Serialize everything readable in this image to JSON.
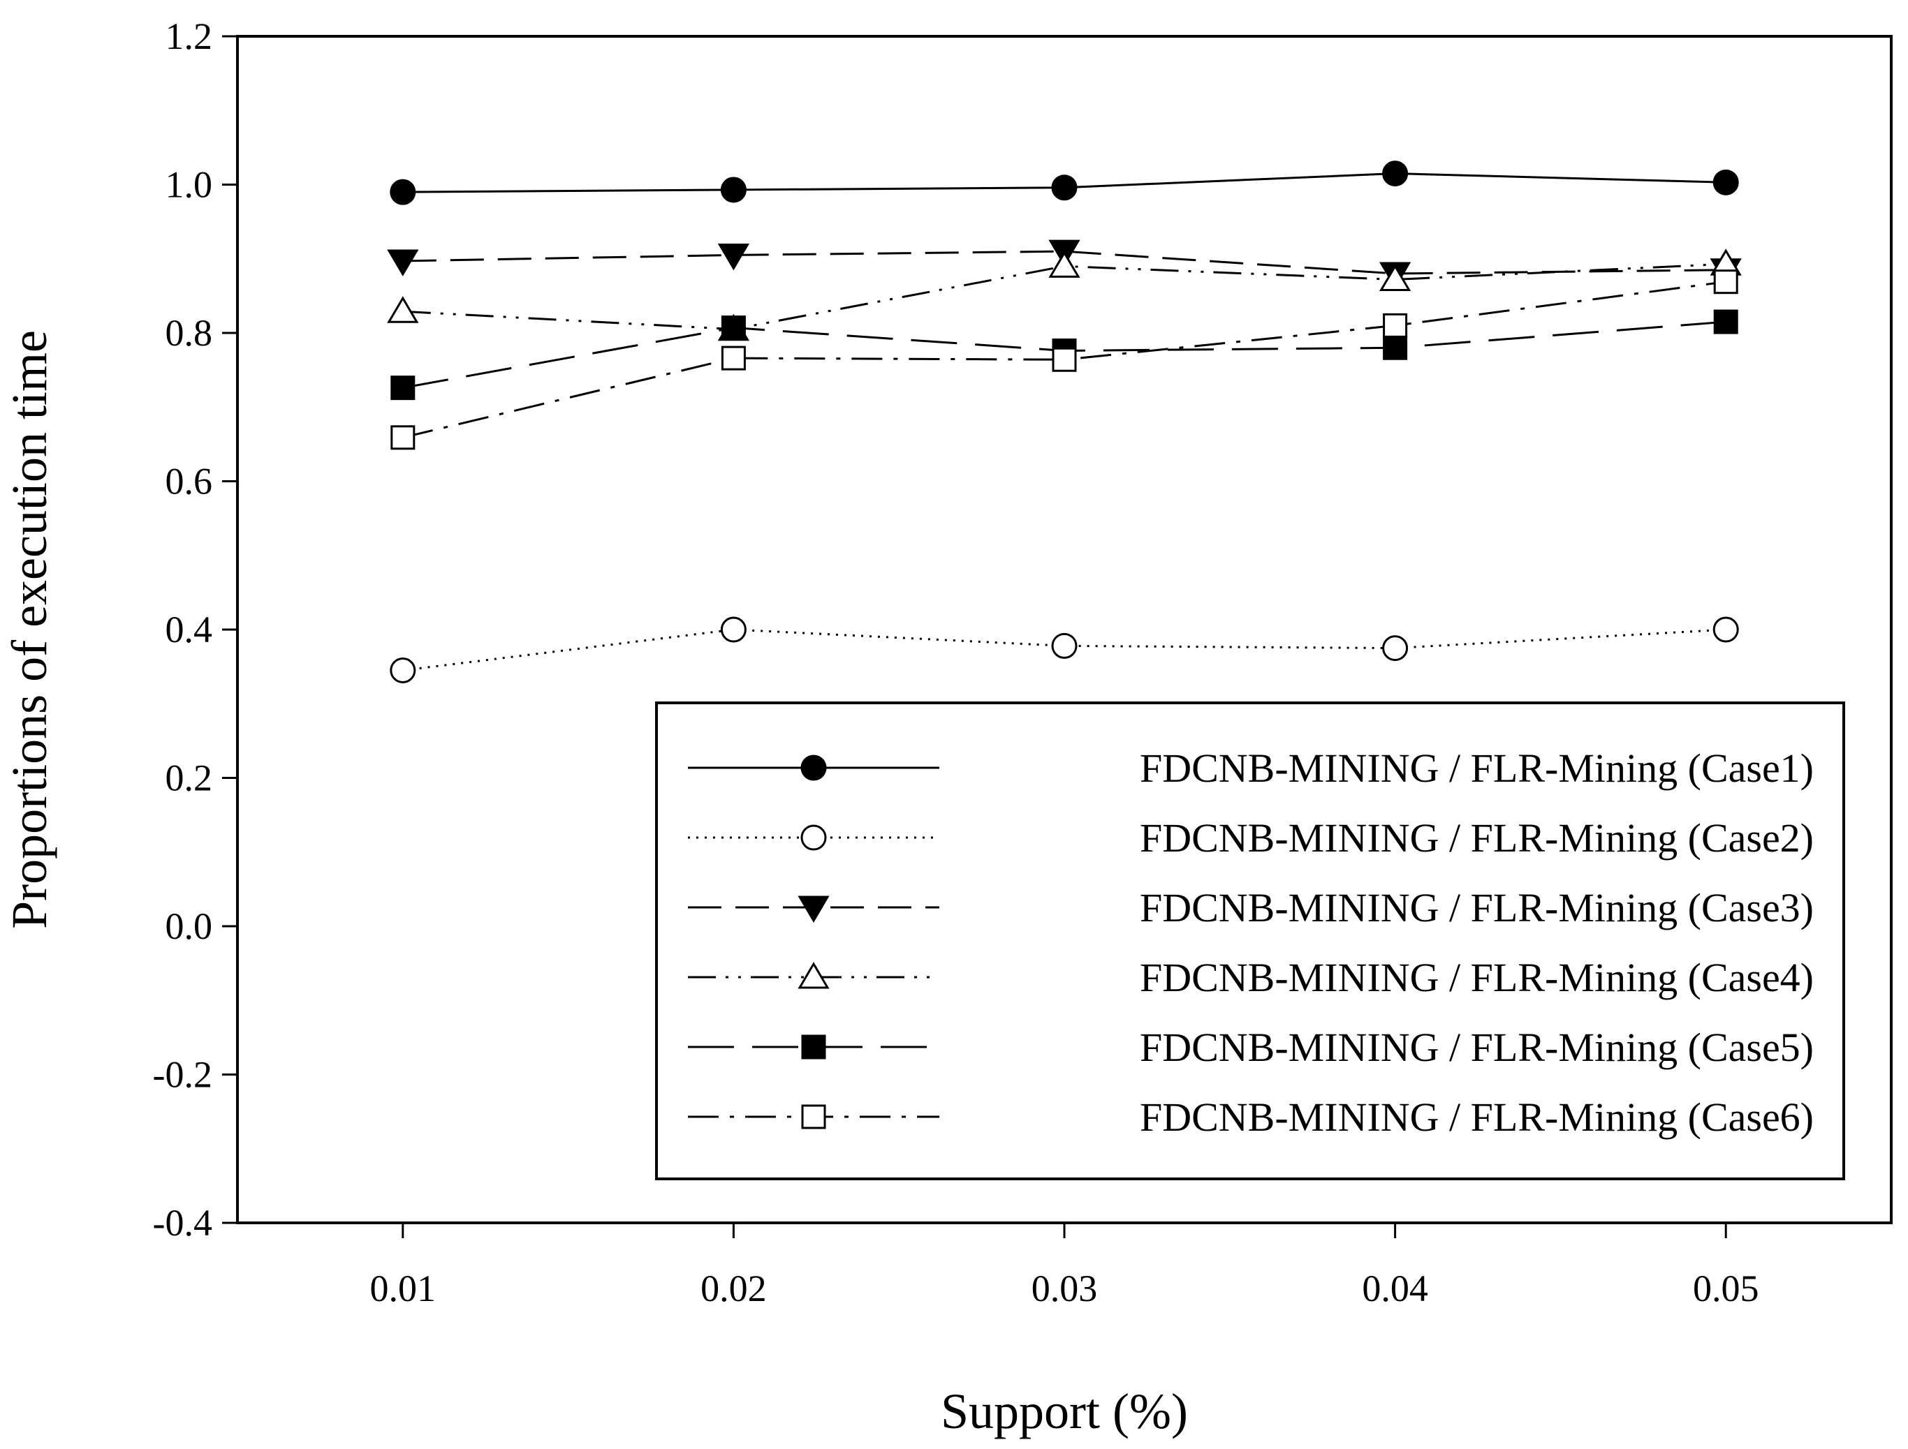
{
  "chart_data": {
    "type": "line",
    "title": "",
    "xlabel": "Support (%)",
    "ylabel": "Proportions of execution time",
    "x": [
      0.01,
      0.02,
      0.03,
      0.04,
      0.05
    ],
    "x_tick_labels": [
      "0.01",
      "0.02",
      "0.03",
      "0.04",
      "0.05"
    ],
    "xlim": [
      0.005,
      0.055
    ],
    "ylim": [
      -0.4,
      1.2
    ],
    "y_ticks": [
      -0.4,
      -0.2,
      0.0,
      0.2,
      0.4,
      0.6,
      0.8,
      1.0,
      1.2
    ],
    "y_tick_labels": [
      "-0.4",
      "-0.2",
      "0.0",
      "0.2",
      "0.4",
      "0.6",
      "0.8",
      "1.0",
      "1.2"
    ],
    "grid": false,
    "legend_position": "lower-right",
    "series": [
      {
        "name": "FDCNB-MINING  / FLR-Mining (Case1)",
        "values": [
          0.99,
          0.993,
          0.996,
          1.015,
          1.003
        ],
        "marker": "filled-circle",
        "line_style": "solid"
      },
      {
        "name": "FDCNB-MINING  / FLR-Mining (Case2)",
        "values": [
          0.345,
          0.4,
          0.378,
          0.375,
          0.4
        ],
        "marker": "open-circle",
        "line_style": "dotted"
      },
      {
        "name": "FDCNB-MINING  / FLR-Mining (Case3)",
        "values": [
          0.897,
          0.905,
          0.91,
          0.88,
          0.885
        ],
        "marker": "filled-triangle-down",
        "line_style": "dashed"
      },
      {
        "name": "FDCNB-MINING  / FLR-Mining (Case4)",
        "values": [
          0.829,
          0.805,
          0.89,
          0.872,
          0.893
        ],
        "marker": "open-triangle-up",
        "line_style": "dash-dot-dot"
      },
      {
        "name": "FDCNB-MINING  / FLR-Mining (Case5)",
        "values": [
          0.726,
          0.807,
          0.776,
          0.78,
          0.815
        ],
        "marker": "filled-square",
        "line_style": "long-dash"
      },
      {
        "name": "FDCNB-MINING  / FLR-Mining (Case6)",
        "values": [
          0.659,
          0.766,
          0.764,
          0.81,
          0.869
        ],
        "marker": "open-square",
        "line_style": "dash-dot"
      }
    ],
    "colors": {
      "line": "#000000",
      "background": "#ffffff"
    }
  }
}
